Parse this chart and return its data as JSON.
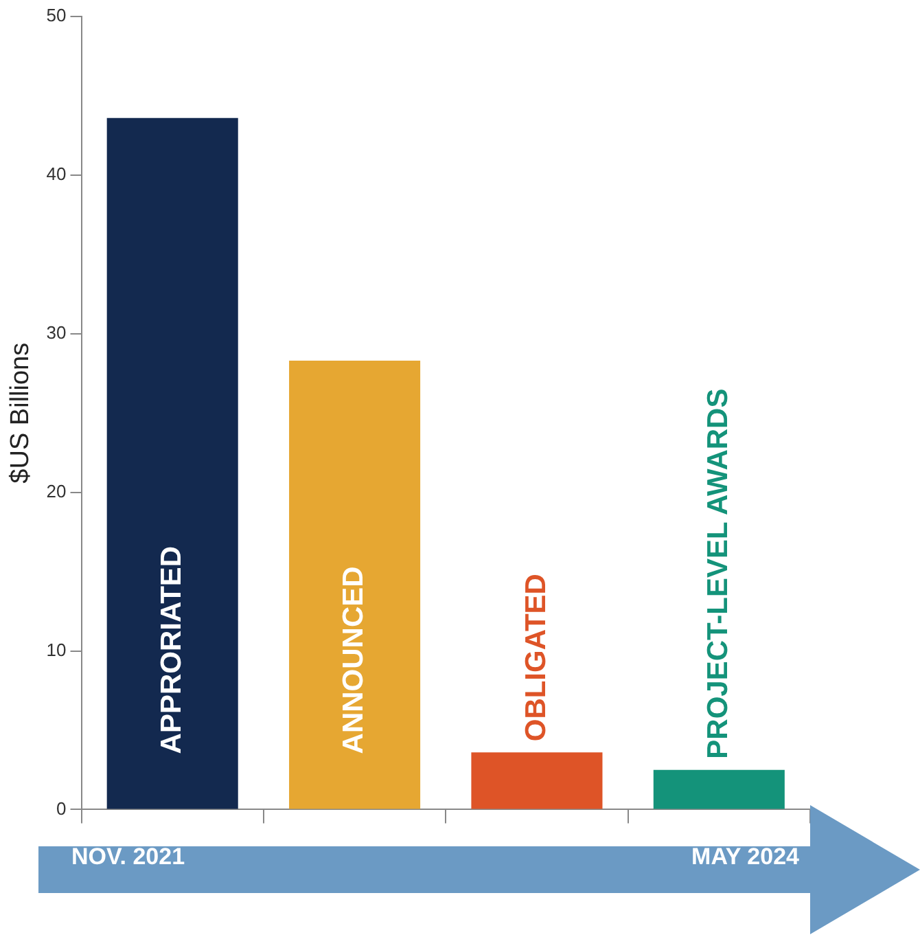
{
  "chart_data": {
    "type": "bar",
    "ylabel": "$US Billions",
    "categories": [
      "APPRORIATED",
      "ANNOUNCED",
      "OBLIGATED",
      "PROJECT-LEVEL AWARDS"
    ],
    "values": [
      43.6,
      28.3,
      3.6,
      2.5
    ],
    "colors": [
      "#13294f",
      "#e6a732",
      "#de5427",
      "#14937a"
    ],
    "ylim": [
      0,
      50
    ],
    "yticks": [
      0,
      10,
      20,
      30,
      40,
      50
    ],
    "grid": false,
    "legend": false,
    "annotations": [
      "NOV. 2021",
      "MAY 2024"
    ]
  }
}
